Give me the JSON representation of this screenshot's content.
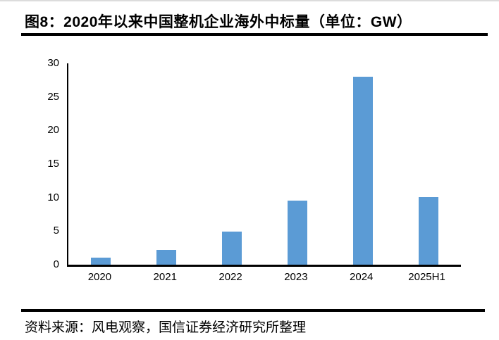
{
  "figure": {
    "title": "图8：2020年以来中国整机企业海外中标量（单位：GW）",
    "source": "资料来源：风电观察，国信证券经济研究所整理"
  },
  "colors": {
    "bar": "#5B9BD5",
    "axis": "#000000",
    "rule": "#000000",
    "text": "#000000"
  },
  "chart_data": {
    "type": "bar",
    "categories": [
      "2020",
      "2021",
      "2022",
      "2023",
      "2024",
      "2025H1"
    ],
    "values": [
      1.0,
      2.2,
      4.9,
      9.5,
      28.0,
      10.1
    ],
    "title": "图8：2020年以来中国整机企业海外中标量（单位：GW）",
    "xlabel": "",
    "ylabel": "",
    "ylim": [
      0,
      30
    ],
    "ytick_step": 5,
    "grid": false,
    "legend_position": "none"
  }
}
